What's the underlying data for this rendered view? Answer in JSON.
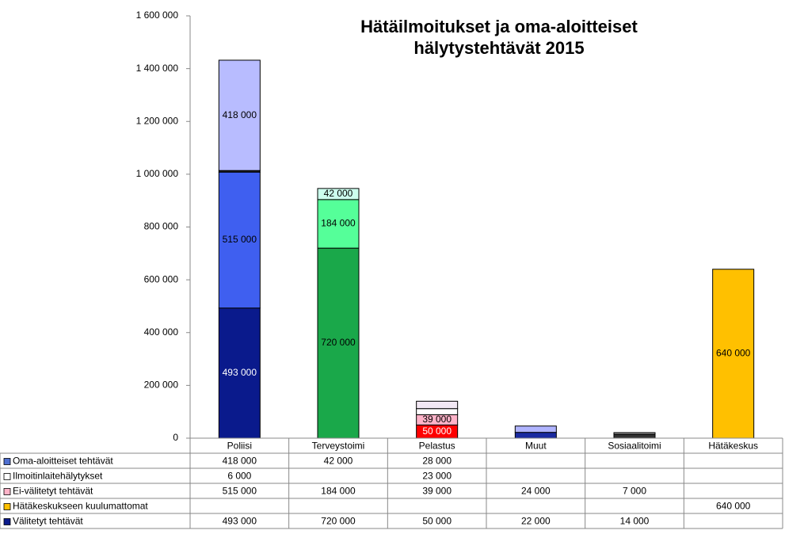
{
  "chart_data": {
    "type": "stacked_bar",
    "title": "Hätäilmoitukset ja oma-aloitteiset hälytystehtävät 2015",
    "categories": [
      "Poliisi",
      "Terveystoimi",
      "Pelastus",
      "Muut",
      "Sosiaalitoimi",
      "Hätäkeskus"
    ],
    "ylim": [
      0,
      1600000
    ],
    "yticks": [
      0,
      {
        "value": 200000,
        "label": "200 000"
      },
      {
        "value": 400000,
        "label": "400 000"
      },
      {
        "value": 600000,
        "label": "600 000"
      },
      {
        "value": 800000,
        "label": "800 000"
      },
      {
        "value": 1000000,
        "label": "1 000 000"
      },
      {
        "value": 1200000,
        "label": "1 200 000"
      },
      {
        "value": 1400000,
        "label": "1 400 000"
      },
      {
        "value": 1600000,
        "label": "1 600 000"
      }
    ],
    "series": [
      {
        "name": "Oma-aloitteiset tehtävät",
        "color": "#4f6fd0",
        "values": [
          418000,
          42000,
          28000,
          null,
          null,
          null
        ],
        "value_labels": [
          "418 000",
          "42 000",
          "28 000",
          null,
          null,
          null
        ],
        "labels_shown": [
          true,
          true,
          false,
          false,
          false,
          false
        ],
        "point_colors": [
          "#b8bcff",
          "#ccffee",
          "#f2e8f4",
          null,
          null,
          null
        ]
      },
      {
        "name": "Ilmoitinlaitehälytykset",
        "color": "#ffffff",
        "values": [
          6000,
          null,
          23000,
          null,
          null,
          null
        ],
        "value_labels": [
          "6 000",
          null,
          "23 000",
          null,
          null,
          null
        ],
        "labels_shown": [
          false,
          false,
          false,
          false,
          false,
          false
        ],
        "point_colors": [
          "#222222",
          null,
          "#ffffff",
          null,
          null,
          null
        ]
      },
      {
        "name": "Ei-välitetyt tehtävät",
        "color": "#ffb3c8",
        "values": [
          515000,
          184000,
          39000,
          24000,
          7000,
          null
        ],
        "value_labels": [
          "515 000",
          "184 000",
          "39 000",
          "24 000",
          "7 000",
          null
        ],
        "labels_shown": [
          true,
          true,
          true,
          false,
          false,
          false
        ],
        "point_colors": [
          "#3f5ff0",
          "#55ff99",
          "#ffb3c8",
          "#b0b4ff",
          "#888888",
          null
        ]
      },
      {
        "name": "Hätäkeskukseen kuulumattomat",
        "color": "#ffc000",
        "values": [
          null,
          null,
          null,
          null,
          null,
          640000
        ],
        "value_labels": [
          null,
          null,
          null,
          null,
          null,
          "640 000"
        ],
        "labels_shown": [
          false,
          false,
          false,
          false,
          false,
          true
        ],
        "point_colors": [
          null,
          null,
          null,
          null,
          null,
          "#ffc000"
        ]
      },
      {
        "name": "Välitetyt tehtävät",
        "color": "#0a1a8c",
        "values": [
          493000,
          720000,
          50000,
          22000,
          14000,
          null
        ],
        "value_labels": [
          "493 000",
          "720 000",
          "50 000",
          "22 000",
          "14 000",
          null
        ],
        "labels_shown": [
          true,
          true,
          true,
          false,
          false,
          false
        ],
        "point_colors": [
          "#0a1a8c",
          "#1aa84a",
          "#ff0000",
          "#1a2aa0",
          "#333333",
          null
        ]
      }
    ]
  }
}
